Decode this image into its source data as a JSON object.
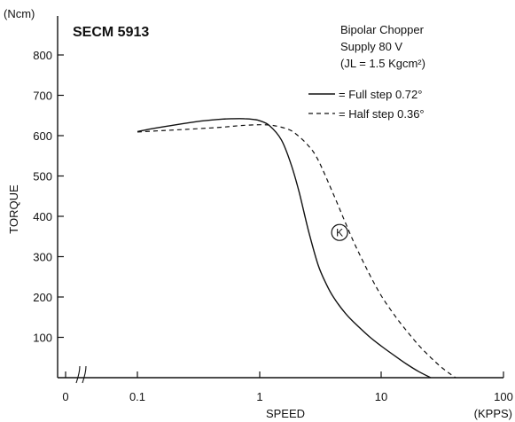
{
  "chart_data": {
    "type": "line",
    "title": "SECM 5913",
    "conditions": [
      "Bipolar Chopper",
      "Supply 80 V",
      "(JL = 1.5 Kgcm²)"
    ],
    "xlabel": "SPEED",
    "xunit": "(KPPS)",
    "ylabel": "TORQUE",
    "yunit": "(Ncm)",
    "x_scale": "log",
    "xlim": [
      0.1,
      100
    ],
    "ylim": [
      0,
      900
    ],
    "x_ticks": [
      "0",
      "0.1",
      "1",
      "10",
      "100"
    ],
    "y_ticks": [
      "100",
      "200",
      "300",
      "400",
      "500",
      "600",
      "700",
      "800"
    ],
    "grid": false,
    "legend_position": "top-right",
    "series": [
      {
        "name": "= Full step 0.72°",
        "style": "solid",
        "x": [
          0.1,
          0.13,
          0.18,
          0.25,
          0.35,
          0.5,
          0.6,
          0.75,
          0.9,
          1.0,
          1.2,
          1.5,
          1.8,
          2.1,
          2.5,
          3.0,
          3.5,
          4.0,
          5.0,
          6.0,
          8.0,
          10.0,
          13.0,
          16.0,
          20.0,
          25.0
        ],
        "values": [
          610,
          617,
          624,
          631,
          637,
          641,
          642,
          642,
          640,
          637,
          625,
          590,
          530,
          460,
          365,
          280,
          232,
          200,
          160,
          135,
          100,
          77,
          52,
          33,
          15,
          0
        ]
      },
      {
        "name": "= Half step 0.36°",
        "style": "dashed",
        "x": [
          0.1,
          0.15,
          0.2,
          0.3,
          0.5,
          0.7,
          1.0,
          1.3,
          1.7,
          2.0,
          2.5,
          3.0,
          4.0,
          5.0,
          6.0,
          8.0,
          10.0,
          13.0,
          16.0,
          20.0,
          25.0,
          30.0,
          35.0,
          40.0
        ],
        "values": [
          609,
          612,
          614,
          617,
          621,
          625,
          627,
          625,
          616,
          603,
          575,
          540,
          455,
          385,
          330,
          253,
          200,
          150,
          115,
          80,
          50,
          28,
          12,
          0
        ]
      }
    ],
    "annotations": [
      {
        "text": "K",
        "style": "circled",
        "x": 4.5,
        "y": 360
      }
    ]
  }
}
